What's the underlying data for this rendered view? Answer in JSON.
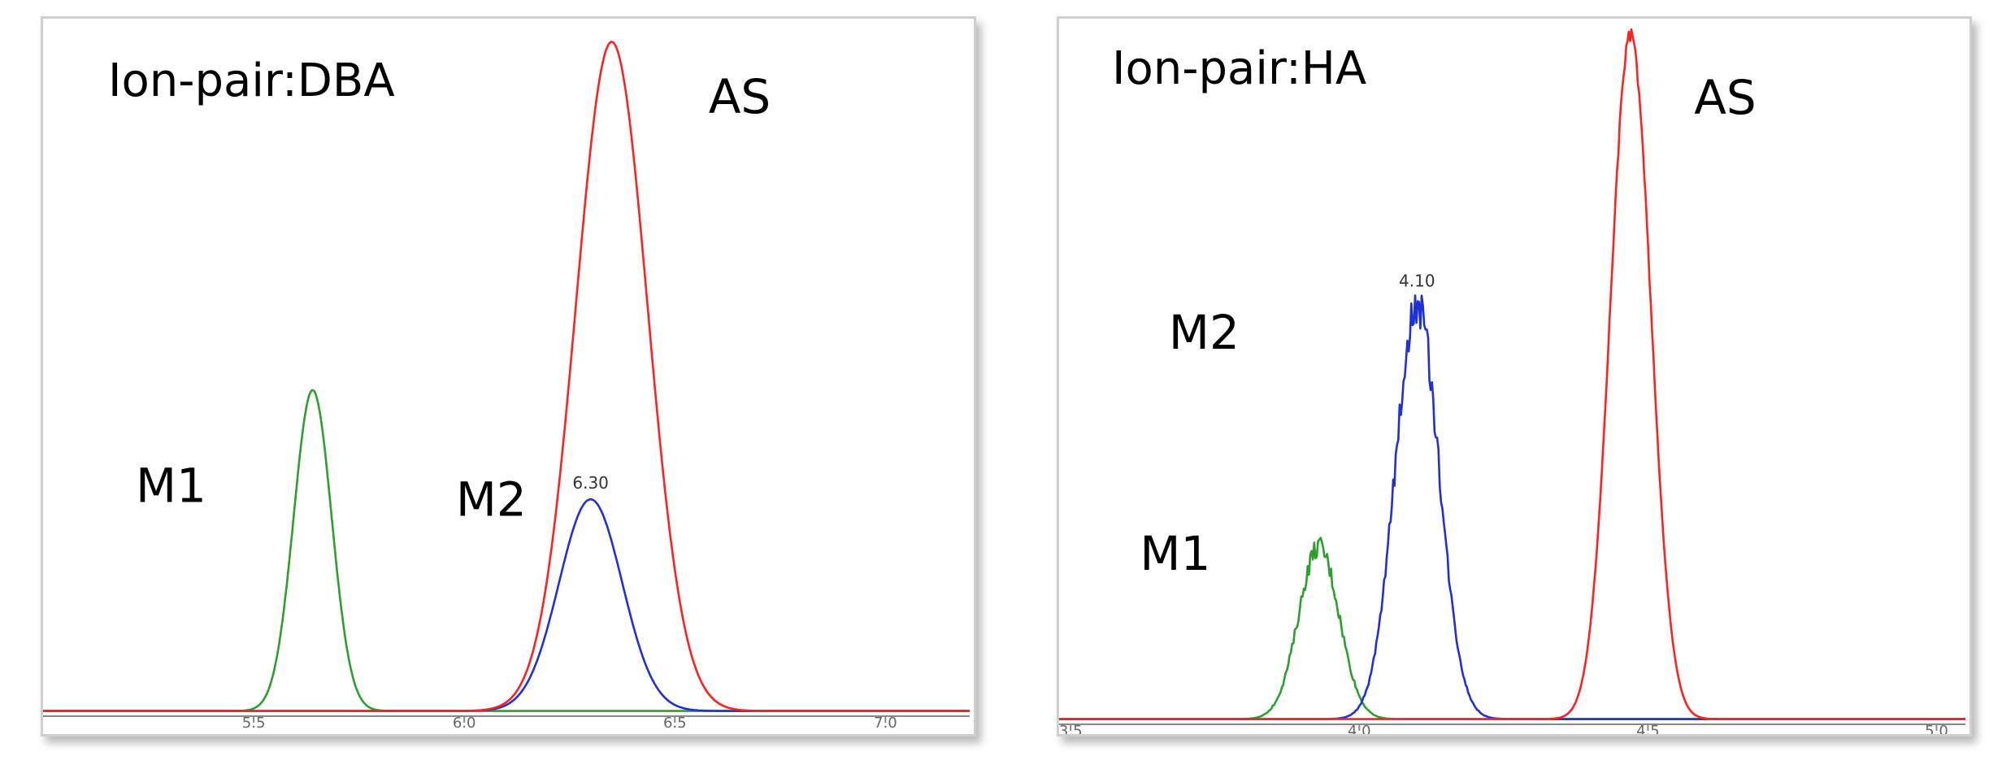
{
  "chart_data": [
    {
      "type": "line",
      "title": "Ion-pair:DBA",
      "xlabel": "",
      "ylabel": "",
      "xlim": [
        5.0,
        7.2
      ],
      "ylim": [
        0,
        100
      ],
      "x_ticks": [
        "5.5",
        "6.0",
        "6.5",
        "7.0"
      ],
      "x_tick_values": [
        5.5,
        6.0,
        6.5,
        7.0
      ],
      "grid": false,
      "peak_labels": [
        {
          "text": "M1",
          "series": "M1",
          "x": 5.22,
          "y": 31
        },
        {
          "text": "M2",
          "series": "M2",
          "x": 5.98,
          "y": 29
        },
        {
          "text": "AS",
          "series": "AS",
          "x": 6.58,
          "y": 88
        }
      ],
      "annotations": [
        {
          "text": "6.30",
          "x": 6.3,
          "y": 33
        }
      ],
      "series": [
        {
          "name": "M1",
          "color": "#2ca02c",
          "peak_x": 5.64,
          "peak_y": 47,
          "width": 0.045,
          "noise": 0.0
        },
        {
          "name": "M2",
          "color": "#2030d8",
          "peak_x": 6.3,
          "peak_y": 31,
          "width": 0.075,
          "noise": 0.0
        },
        {
          "name": "AS",
          "color": "#ff2020",
          "peak_x": 6.35,
          "peak_y": 98,
          "width": 0.085,
          "noise": 0.0
        }
      ]
    },
    {
      "type": "line",
      "title": "Ion-pair:HA",
      "xlabel": "",
      "ylabel": "",
      "xlim": [
        3.48,
        5.05
      ],
      "ylim": [
        0,
        100
      ],
      "x_ticks": [
        "3.5",
        "4.0",
        "4.5",
        "5.0"
      ],
      "x_tick_values": [
        3.5,
        4.0,
        4.5,
        5.0
      ],
      "grid": false,
      "peak_labels": [
        {
          "text": "M1",
          "series": "M1",
          "x": 3.62,
          "y": 22
        },
        {
          "text": "M2",
          "series": "M2",
          "x": 3.67,
          "y": 54
        },
        {
          "text": "AS",
          "series": "AS",
          "x": 4.58,
          "y": 88
        }
      ],
      "annotations": [
        {
          "text": "4.10",
          "x": 4.1,
          "y": 63
        }
      ],
      "series": [
        {
          "name": "M1",
          "color": "#2ca02c",
          "peak_x": 3.93,
          "peak_y": 25,
          "width": 0.035,
          "noise": 1.5
        },
        {
          "name": "M2",
          "color": "#2030d8",
          "peak_x": 4.1,
          "peak_y": 60,
          "width": 0.038,
          "noise": 3.0
        },
        {
          "name": "AS",
          "color": "#ff2020",
          "peak_x": 4.47,
          "peak_y": 99,
          "width": 0.035,
          "noise": 1.0
        }
      ]
    }
  ]
}
